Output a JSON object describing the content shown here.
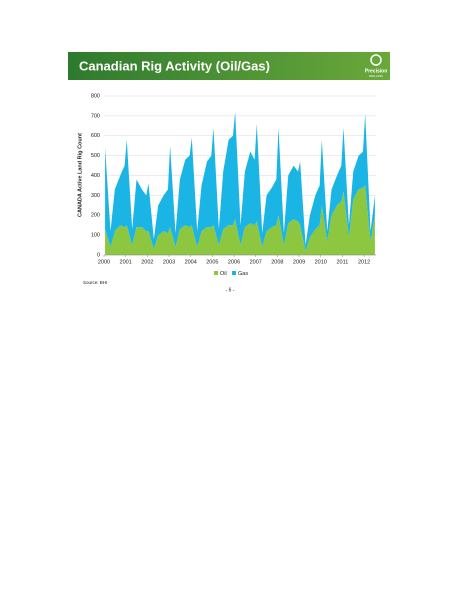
{
  "slide": {
    "logo_name": "Precision",
    "logo_sub": "DRILLING",
    "page": "- 6 -",
    "source": "Source: BHI"
  },
  "chart_data": {
    "type": "stacked_area",
    "title": "Canadian Rig Activity (Oil/Gas)",
    "y_label": "CANADA Active Land Rig Count",
    "x": [
      2000.05,
      2000.3,
      2000.5,
      2000.75,
      2000.95,
      2001.05,
      2001.3,
      2001.5,
      2001.75,
      2001.95,
      2002.05,
      2002.3,
      2002.5,
      2002.75,
      2002.95,
      2003.05,
      2003.3,
      2003.5,
      2003.75,
      2003.95,
      2004.05,
      2004.3,
      2004.5,
      2004.75,
      2004.95,
      2005.05,
      2005.3,
      2005.5,
      2005.75,
      2005.95,
      2006.05,
      2006.3,
      2006.5,
      2006.75,
      2006.95,
      2007.05,
      2007.3,
      2007.5,
      2007.75,
      2007.95,
      2008.05,
      2008.3,
      2008.5,
      2008.75,
      2008.95,
      2009.05,
      2009.3,
      2009.5,
      2009.75,
      2009.95,
      2010.05,
      2010.3,
      2010.5,
      2010.75,
      2010.95,
      2011.05,
      2011.3,
      2011.5,
      2011.75,
      2011.95,
      2012.05,
      2012.3,
      2012.5
    ],
    "series": [
      {
        "name": "Oil",
        "color": "#8dc63f",
        "values": [
          130,
          40,
          120,
          150,
          140,
          150,
          50,
          140,
          140,
          120,
          120,
          30,
          100,
          120,
          110,
          140,
          40,
          130,
          150,
          140,
          150,
          40,
          120,
          140,
          140,
          150,
          50,
          130,
          150,
          150,
          180,
          50,
          140,
          160,
          150,
          170,
          40,
          120,
          140,
          150,
          200,
          50,
          160,
          180,
          170,
          150,
          20,
          90,
          130,
          150,
          250,
          70,
          200,
          250,
          270,
          320,
          90,
          280,
          330,
          340,
          350,
          70,
          200
        ]
      },
      {
        "name": "Gas",
        "color": "#1bb5e5",
        "values": [
          410,
          80,
          210,
          250,
          310,
          430,
          80,
          240,
          190,
          180,
          240,
          50,
          150,
          180,
          220,
          410,
          70,
          250,
          330,
          360,
          440,
          80,
          230,
          330,
          360,
          490,
          80,
          290,
          430,
          450,
          540,
          100,
          280,
          360,
          330,
          490,
          70,
          180,
          200,
          230,
          440,
          60,
          240,
          270,
          250,
          320,
          30,
          110,
          170,
          200,
          330,
          50,
          130,
          150,
          180,
          320,
          60,
          140,
          170,
          180,
          360,
          50,
          100
        ]
      }
    ],
    "xlim": [
      2000,
      2012.55
    ],
    "xticks": [
      2000,
      2001,
      2002,
      2003,
      2004,
      2005,
      2006,
      2007,
      2008,
      2009,
      2010,
      2011,
      2012
    ],
    "ylim": [
      0,
      800
    ],
    "yticks": [
      0,
      100,
      200,
      300,
      400,
      500,
      600,
      700,
      800
    ],
    "grid": true
  }
}
